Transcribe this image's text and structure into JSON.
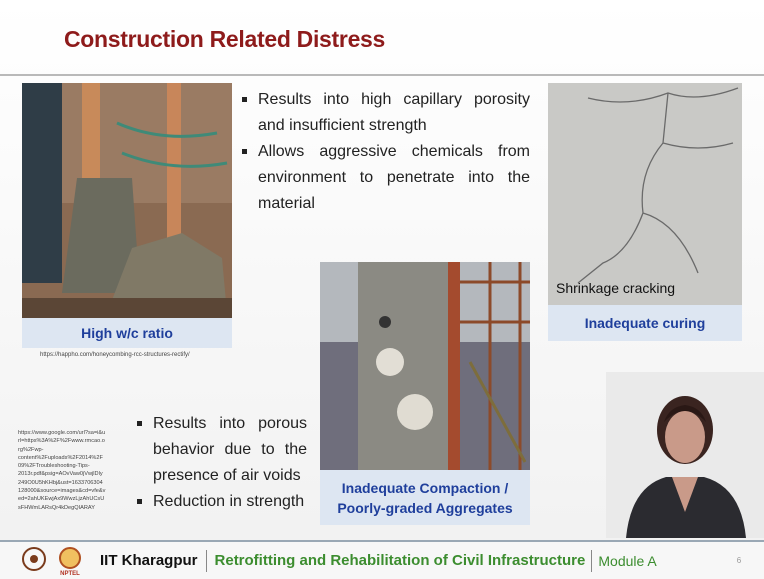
{
  "header": {
    "title": "Construction Related Distress"
  },
  "top_bullets": [
    "Results into high capillary porosity and insufficient strength",
    "Allows aggressive chemicals from environment to penetrate into the material"
  ],
  "bottom_bullets": [
    "Results into porous behavior due to the presence of air voids",
    "Reduction in strength"
  ],
  "figures": [
    {
      "caption": "High w/c ratio",
      "source": "https://happho.com/honeycombing-rcc-structures-rectify/"
    },
    {
      "overlay": "Shrinkage cracking",
      "caption": "Inadequate curing"
    },
    {
      "caption_lines": [
        "Inadequate Compaction /",
        "Poorly-graded Aggregates"
      ]
    }
  ],
  "long_source": [
    "https://www.google.com/url?sa=i&u",
    "rl=https%3A%2F%2Fwww.rmcao.o",
    "rg%2Fwp-",
    "content%2Fuploads%2F2014%2F",
    "09%2FTroubleshooting-Tips-",
    "2013r.pdf&psig=AOvVaw0jVwjlDly",
    "249O0U5hKHbj&ust=1633706304",
    "128000&source=images&cd=vfe&v",
    "ed=2ahUKEwjAx9WwzLjzAhUCsU",
    "sFHWmLARsQr4kDegQIARAY"
  ],
  "footer": {
    "logo_text": "NPTEL",
    "institute": "IIT Kharagpur",
    "course": "Retrofitting and Rehabilitation of Civil Infrastructure",
    "module": "Module A",
    "page": "6"
  }
}
